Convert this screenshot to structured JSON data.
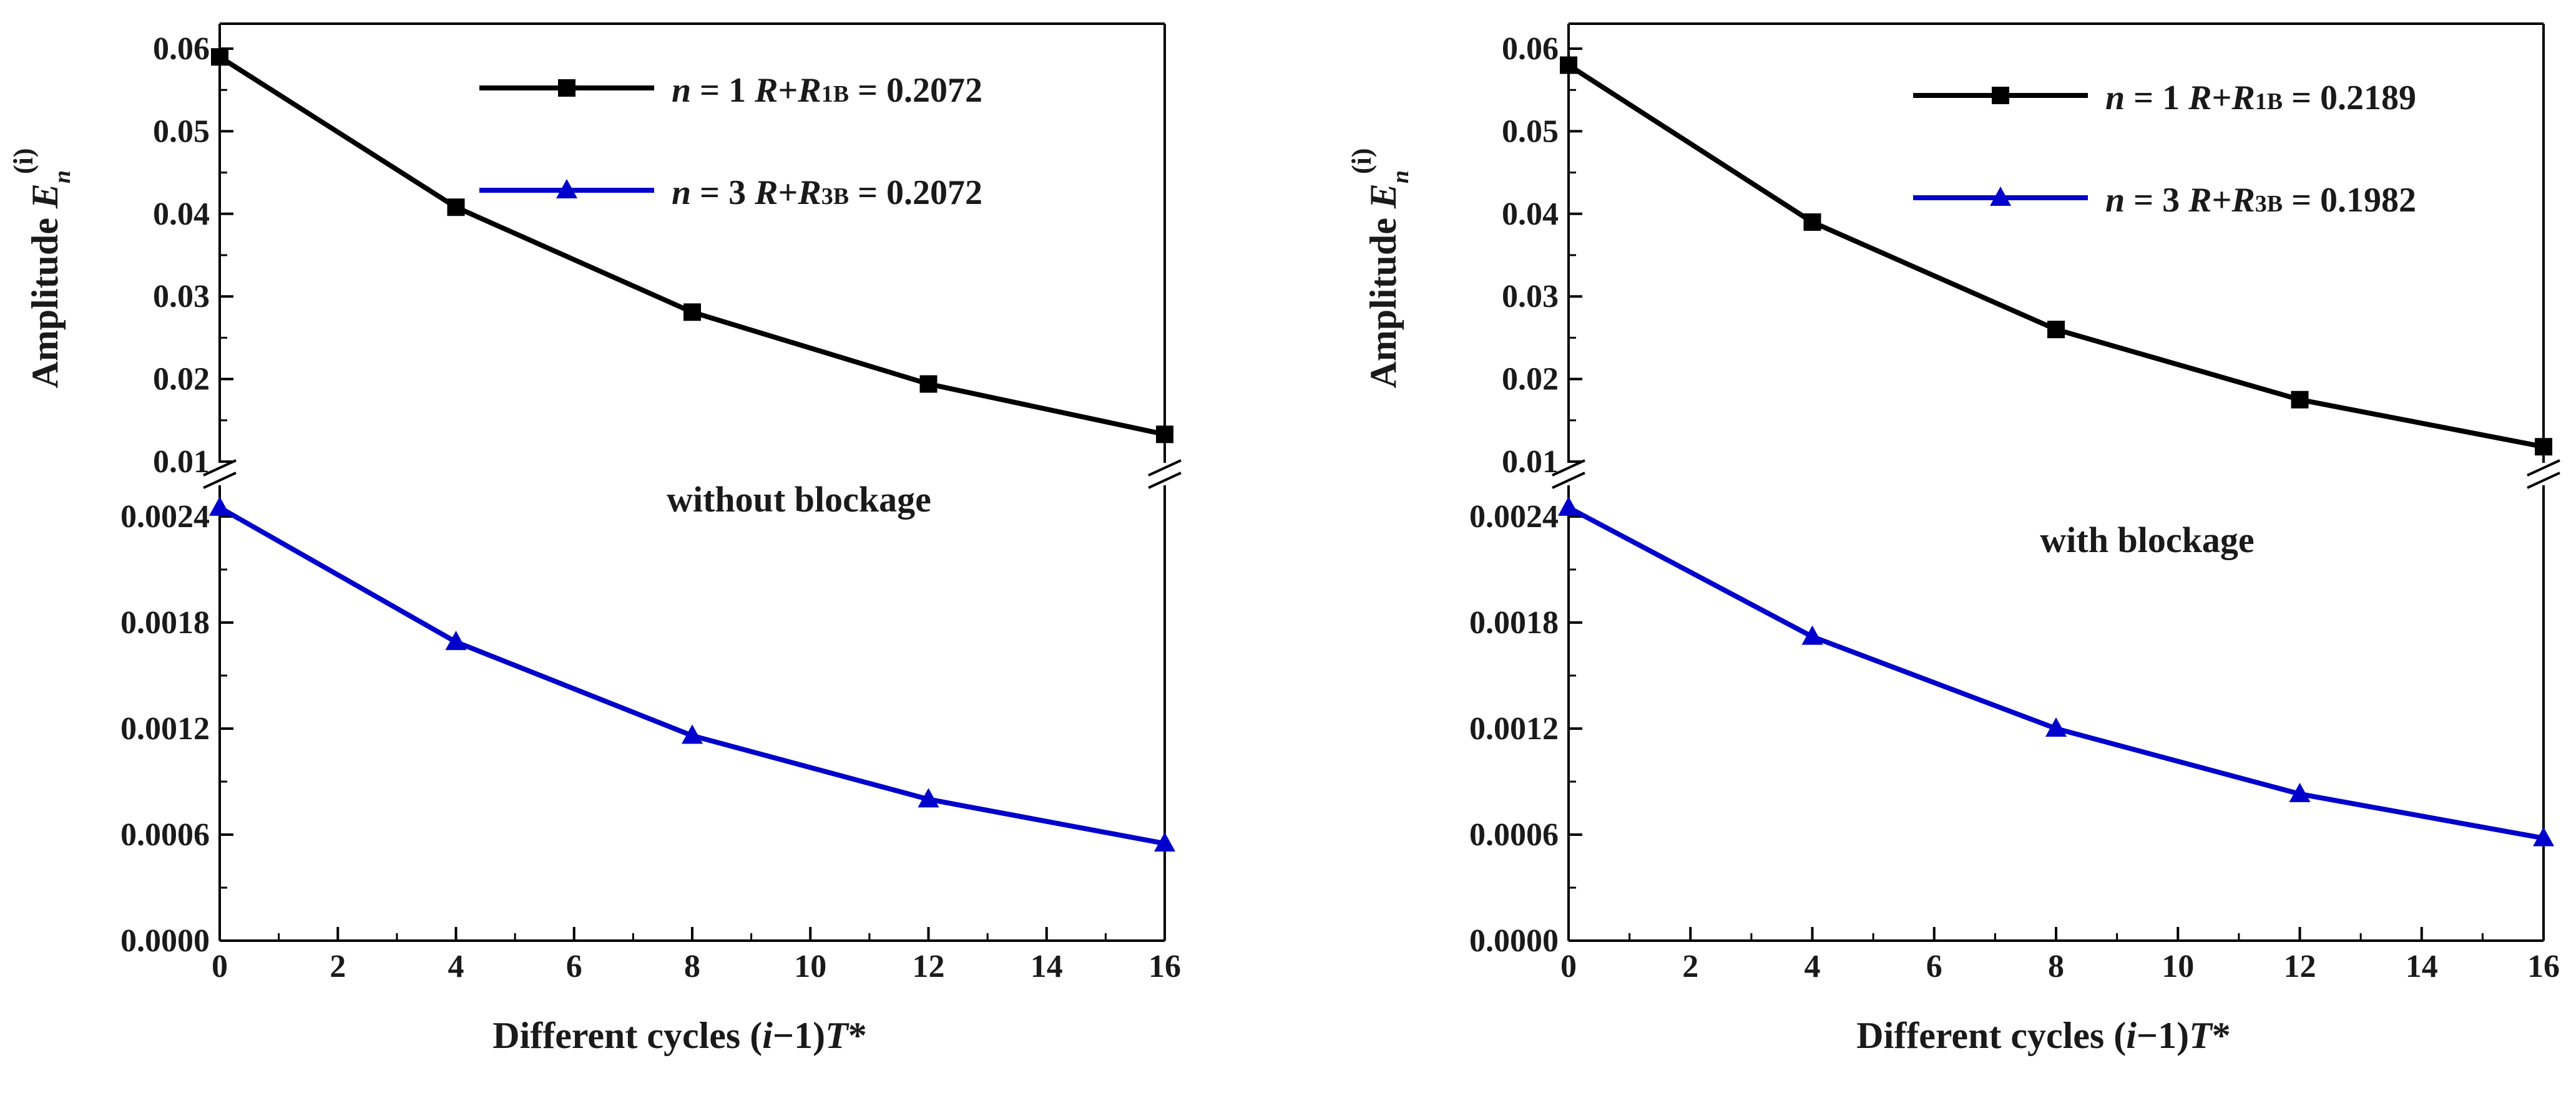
{
  "chart_data": [
    {
      "type": "line",
      "annotation": "without blockage",
      "xlabel": "Different cycles  (i−1)T*",
      "ylabel": "Amplitude E_n^(i)",
      "x": [
        0,
        4,
        8,
        12,
        16
      ],
      "xlim": [
        0,
        16
      ],
      "xticks": [
        "0",
        "2",
        "4",
        "6",
        "8",
        "10",
        "12",
        "14",
        "16"
      ],
      "axis_break": true,
      "upper_ylim": [
        0.01,
        0.065
      ],
      "upper_yticks": [
        "0.01",
        "0.02",
        "0.03",
        "0.04",
        "0.05",
        "0.06"
      ],
      "lower_ylim": [
        0,
        0.0027
      ],
      "lower_yticks": [
        "0.0000",
        "0.0006",
        "0.0012",
        "0.0018",
        "0.0024"
      ],
      "series": [
        {
          "name": "n = 1 R+R1B = 0.2072",
          "n": "1",
          "sub": "1B",
          "value": "0.2072",
          "color": "#000000",
          "marker": "square",
          "segment": "upper",
          "values": [
            0.059,
            0.0408,
            0.0281,
            0.0194,
            0.0133
          ]
        },
        {
          "name": "n = 3 R+R3B = 0.2072",
          "n": "3",
          "sub": "3B",
          "value": "0.2072",
          "color": "#0000cc",
          "marker": "triangle",
          "segment": "lower",
          "values": [
            0.00245,
            0.00169,
            0.00116,
            0.0008,
            0.00055
          ]
        }
      ]
    },
    {
      "type": "line",
      "annotation": "with blockage",
      "xlabel": "Different cycles (i−1)T*",
      "ylabel": "Amplitude E_n^(i)",
      "x": [
        0,
        4,
        8,
        12,
        16
      ],
      "xlim": [
        0,
        16
      ],
      "xticks": [
        "0",
        "2",
        "4",
        "6",
        "8",
        "10",
        "12",
        "14",
        "16"
      ],
      "axis_break": true,
      "upper_ylim": [
        0.01,
        0.065
      ],
      "upper_yticks": [
        "0.01",
        "0.02",
        "0.03",
        "0.04",
        "0.05",
        "0.06"
      ],
      "lower_ylim": [
        0,
        0.0027
      ],
      "lower_yticks": [
        "0.0000",
        "0.0006",
        "0.0012",
        "0.0018",
        "0.0024"
      ],
      "series": [
        {
          "name": "n = 1 R+R1B = 0.2189",
          "n": "1",
          "sub": "1B",
          "value": "0.2189",
          "color": "#000000",
          "marker": "square",
          "segment": "upper",
          "values": [
            0.058,
            0.039,
            0.026,
            0.0175,
            0.0118
          ]
        },
        {
          "name": "n = 3 R+R3B = 0.1982",
          "n": "3",
          "sub": "3B",
          "value": "0.1982",
          "color": "#0000cc",
          "marker": "triangle",
          "segment": "lower",
          "values": [
            0.00245,
            0.00172,
            0.0012,
            0.00083,
            0.00058
          ]
        }
      ]
    }
  ]
}
